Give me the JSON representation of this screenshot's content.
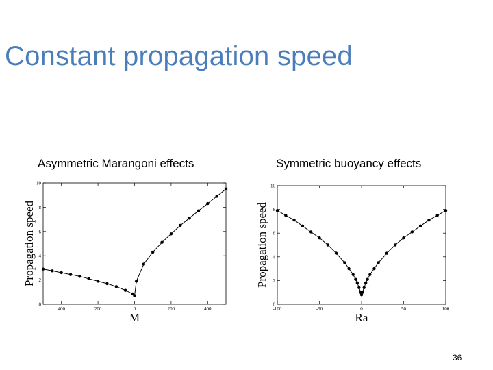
{
  "slide": {
    "title": "Constant propagation speed",
    "page_number": "36"
  },
  "chart_data": [
    {
      "type": "line",
      "title": "Asymmetric Marangoni effects",
      "xlabel": "M",
      "ylabel": "Propagation speed",
      "xlim": [
        -500,
        500
      ],
      "ylim": [
        0,
        10
      ],
      "xticks": [
        -400,
        -200,
        0,
        200,
        400
      ],
      "xtick_labels": [
        "400",
        "200",
        "0",
        "200",
        "400"
      ],
      "yticks": [
        0,
        2,
        4,
        6,
        8,
        10
      ],
      "grid": false,
      "series": [
        {
          "marker": "circle",
          "x": [
            -500,
            -450,
            -400,
            -350,
            -300,
            -250,
            -200,
            -150,
            -100,
            -50,
            -10,
            0,
            10,
            50,
            100,
            150,
            200,
            250,
            300,
            350,
            400,
            450,
            500
          ],
          "y": [
            2.9,
            2.75,
            2.6,
            2.45,
            2.3,
            2.1,
            1.9,
            1.7,
            1.45,
            1.15,
            0.85,
            0.7,
            1.9,
            3.3,
            4.3,
            5.1,
            5.8,
            6.5,
            7.1,
            7.7,
            8.3,
            8.9,
            9.5
          ]
        }
      ]
    },
    {
      "type": "line",
      "title": "Symmetric buoyancy effects",
      "xlabel": "Ra",
      "ylabel": "Propagation speed",
      "xlim": [
        -100,
        100
      ],
      "ylim": [
        0,
        10
      ],
      "xticks": [
        -100,
        -50,
        0,
        50,
        100
      ],
      "xtick_labels": [
        "-100",
        "-50",
        "0",
        "50",
        "100"
      ],
      "yticks": [
        0,
        2,
        4,
        6,
        8,
        10
      ],
      "grid": false,
      "series": [
        {
          "marker": "circle",
          "x": [
            -100,
            -90,
            -80,
            -70,
            -60,
            -50,
            -40,
            -30,
            -20,
            -15,
            -10,
            -7,
            -5,
            -3,
            -1,
            0,
            1,
            3,
            5,
            7,
            10,
            15,
            20,
            30,
            40,
            50,
            60,
            70,
            80,
            90,
            100
          ],
          "y": [
            7.9,
            7.5,
            7.1,
            6.6,
            6.1,
            5.6,
            5.0,
            4.3,
            3.5,
            3.0,
            2.5,
            2.1,
            1.8,
            1.4,
            1.0,
            0.8,
            1.0,
            1.4,
            1.8,
            2.1,
            2.5,
            3.0,
            3.5,
            4.3,
            5.0,
            5.6,
            6.1,
            6.6,
            7.1,
            7.5,
            7.9
          ]
        }
      ]
    }
  ]
}
